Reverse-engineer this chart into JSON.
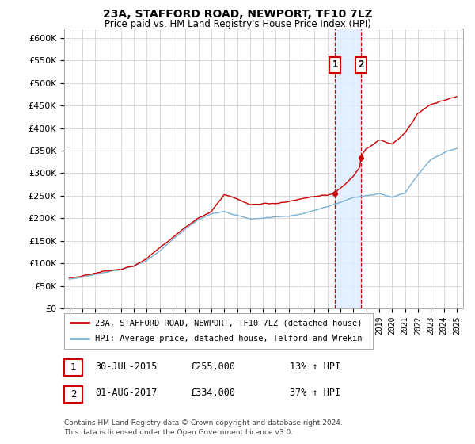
{
  "title": "23A, STAFFORD ROAD, NEWPORT, TF10 7LZ",
  "subtitle": "Price paid vs. HM Land Registry's House Price Index (HPI)",
  "ylim": [
    0,
    620000
  ],
  "ytick_vals": [
    0,
    50000,
    100000,
    150000,
    200000,
    250000,
    300000,
    350000,
    400000,
    450000,
    500000,
    550000,
    600000
  ],
  "legend_line1": "23A, STAFFORD ROAD, NEWPORT, TF10 7LZ (detached house)",
  "legend_line2": "HPI: Average price, detached house, Telford and Wrekin",
  "annotation1_label": "1",
  "annotation1_date": "30-JUL-2015",
  "annotation1_price": "£255,000",
  "annotation1_hpi": "13% ↑ HPI",
  "annotation2_label": "2",
  "annotation2_date": "01-AUG-2017",
  "annotation2_price": "£334,000",
  "annotation2_hpi": "37% ↑ HPI",
  "footnote_line1": "Contains HM Land Registry data © Crown copyright and database right 2024.",
  "footnote_line2": "This data is licensed under the Open Government Licence v3.0.",
  "line1_color": "#cc0000",
  "line2_color": "#7ab0d4",
  "shading_color": "#ddeeff",
  "vline_color": "#cc0000",
  "background_color": "#ffffff",
  "grid_color": "#cccccc",
  "sale1_x": 2015.58,
  "sale1_y": 255000,
  "sale2_x": 2017.58,
  "sale2_y": 334000,
  "xlim_left": 1994.6,
  "xlim_right": 2025.5
}
